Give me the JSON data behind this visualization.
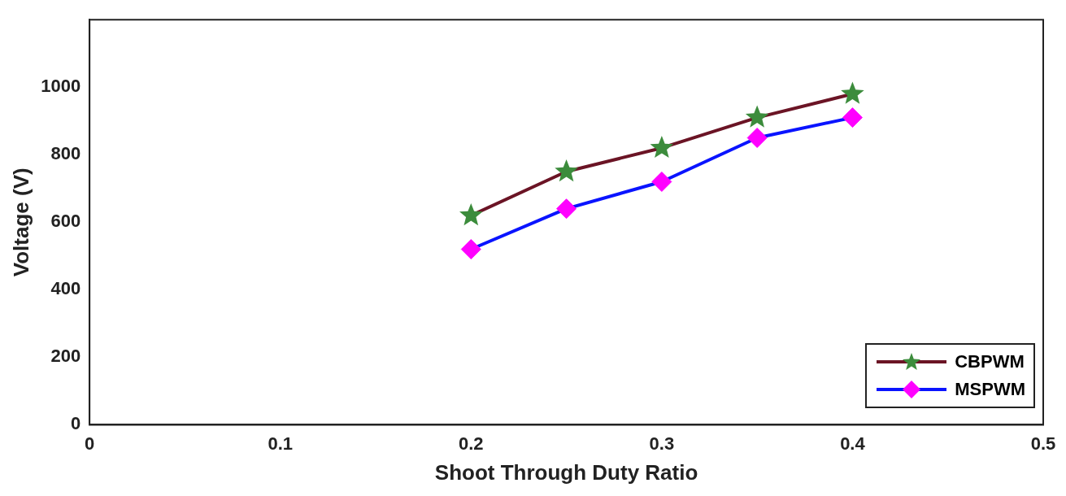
{
  "chart_data": {
    "type": "line",
    "xlabel": "Shoot Through Duty Ratio",
    "ylabel": "Voltage (V)",
    "x": [
      0.2,
      0.25,
      0.3,
      0.35,
      0.4
    ],
    "series": [
      {
        "name": "CBPWM",
        "color": "#6b1425",
        "colors": [
          "#3c8c3c",
          "#3c8c3c",
          "#3c8c3c",
          "#3c8c3c",
          "#3c8c3c"
        ],
        "marker": "star",
        "values": [
          620,
          750,
          820,
          910,
          980
        ]
      },
      {
        "name": "MSPWM",
        "color": "#0a14ff",
        "colors": [
          "#ff00ff",
          "#ff00ff",
          "#ff00ff",
          "#ff00ff",
          "#ff00ff"
        ],
        "marker": "diamond",
        "values": [
          520,
          640,
          720,
          850,
          910
        ]
      }
    ],
    "xlim": [
      0,
      0.5
    ],
    "xticks": [
      0,
      0.1,
      0.2,
      0.3,
      0.4,
      0.5
    ],
    "ylim": [
      0,
      1200
    ],
    "yticks": [
      0,
      200,
      400,
      600,
      800,
      1000
    ],
    "grid": false,
    "legend": "bottom right"
  }
}
